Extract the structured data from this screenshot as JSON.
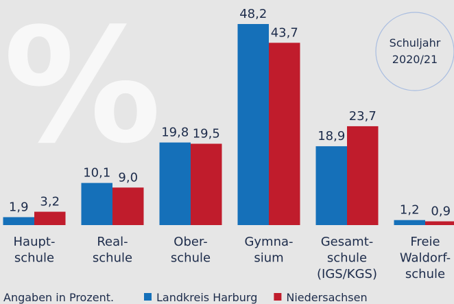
{
  "chart_data": {
    "type": "bar",
    "watermark": "%",
    "badge": [
      "Schuljahr",
      "2020/21"
    ],
    "note": "Angaben in Prozent.",
    "categories": [
      [
        "Haupt-",
        "schule"
      ],
      [
        "Real-",
        "schule"
      ],
      [
        "Ober-",
        "schule"
      ],
      [
        "Gymna-",
        "sium"
      ],
      [
        "Gesamt-",
        "schule",
        "(IGS/KGS)"
      ],
      [
        "Freie",
        "Waldorf-",
        "schule"
      ]
    ],
    "series": [
      {
        "name": "Landkreis Harburg",
        "color": "#1570b9",
        "values": [
          1.9,
          10.1,
          19.8,
          48.2,
          18.9,
          1.2
        ],
        "value_labels": [
          "1,9",
          "10,1",
          "19,8",
          "48,2",
          "18,9",
          "1,2"
        ]
      },
      {
        "name": "Niedersachsen",
        "color": "#c01c2c",
        "values": [
          3.2,
          9.0,
          19.5,
          43.7,
          23.7,
          0.9
        ],
        "value_labels": [
          "3,2",
          "9,0",
          "19,5",
          "43,7",
          "23,7",
          "0,9"
        ]
      }
    ],
    "legend": "bottom"
  }
}
